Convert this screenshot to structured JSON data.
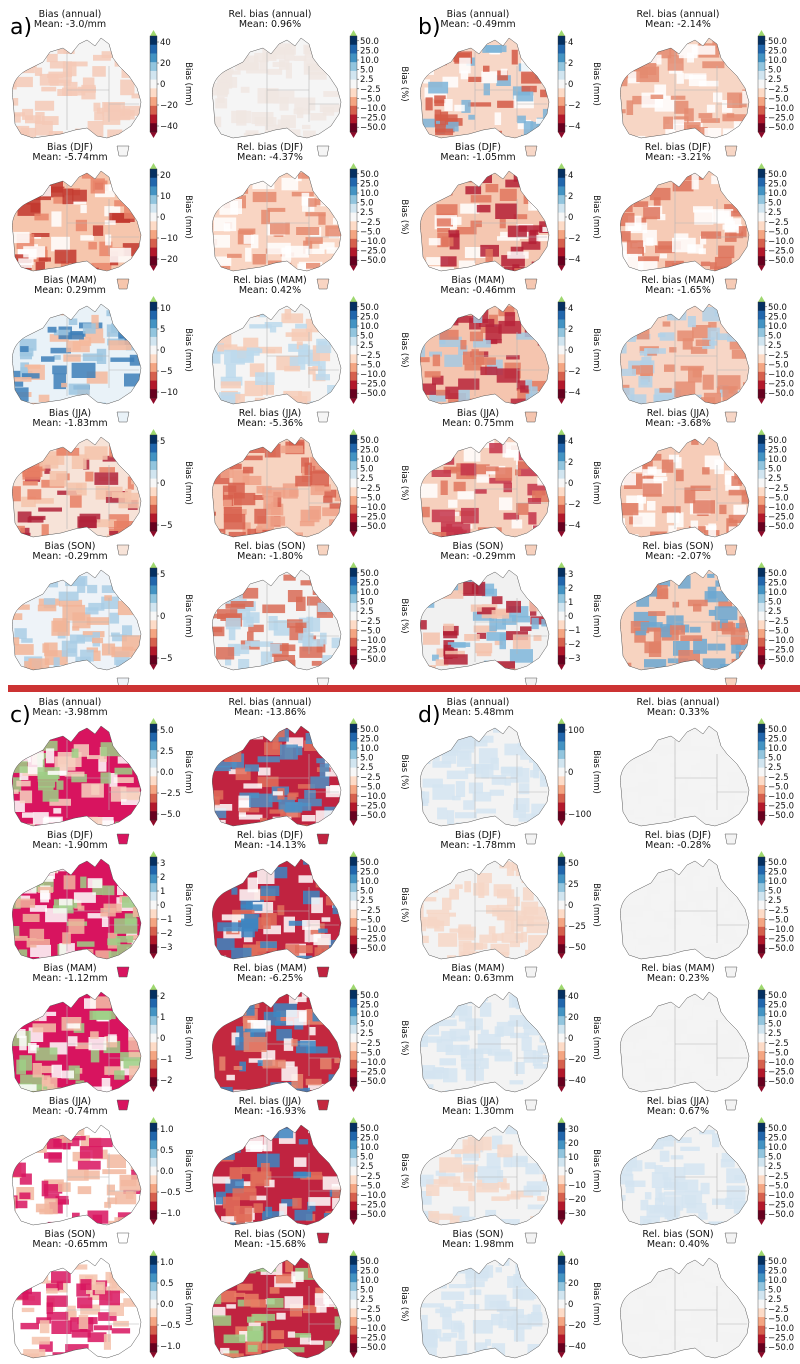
{
  "panels": [
    {
      "letter": "a)",
      "subplots": [
        {
          "title": "Bias (annual)",
          "mean": "Mean: -3.0/mm",
          "kind": "abs",
          "ticks": [
            "40",
            "20",
            "0",
            "−20",
            "−40"
          ],
          "cbar_label": "Bias (mm)",
          "dom": "white",
          "accents": [
            "#f4c9b6"
          ]
        },
        {
          "title": "Rel. bias (annual)",
          "mean": "Mean: 0.96%",
          "kind": "rel",
          "cbar_label": "Bias (%)",
          "dom": "white",
          "accents": [
            "#f0e6e2"
          ]
        },
        {
          "title": "Bias (DJF)",
          "mean": "Mean: -5.74mm",
          "kind": "abs",
          "ticks": [
            "20",
            "10",
            "0",
            "−10",
            "−20"
          ],
          "cbar_label": "Bias (mm)",
          "dom": "#f6c6ad",
          "accents": [
            "#c2372e",
            "#e9856a",
            "#ffffff"
          ]
        },
        {
          "title": "Rel. bias (DJF)",
          "mean": "Mean: -4.37%",
          "kind": "rel",
          "cbar_label": "Bias (%)",
          "dom": "#f9d5c3",
          "accents": [
            "#e58a6e",
            "#ffffff"
          ]
        },
        {
          "title": "Bias (MAM)",
          "mean": "Mean: 0.29mm",
          "kind": "abs",
          "ticks": [
            "10",
            "5",
            "0",
            "−5",
            "−10"
          ],
          "cbar_label": "Bias (mm)",
          "dom": "#e9f2f8",
          "accents": [
            "#9cc6e1",
            "#f4b89c",
            "#3d7fb8"
          ]
        },
        {
          "title": "Rel. bias (MAM)",
          "mean": "Mean: 0.42%",
          "kind": "rel",
          "cbar_label": "Bias (%)",
          "dom": "white",
          "accents": [
            "#bcd9ec",
            "#f6cbb6"
          ]
        },
        {
          "title": "Bias (JJA)",
          "mean": "Mean: -1.83mm",
          "kind": "abs",
          "ticks": [
            "5",
            "0",
            "−5"
          ],
          "cbar_label": "Bias (mm)",
          "dom": "#f7e3d8",
          "accents": [
            "#b0223a",
            "#e77f64",
            "#f5c3aa"
          ]
        },
        {
          "title": "Rel. bias (JJA)",
          "mean": "Mean: -5.36%",
          "kind": "rel",
          "cbar_label": "Bias (%)",
          "dom": "#f7d3c0",
          "accents": [
            "#d75f4c",
            "#eea187"
          ]
        },
        {
          "title": "Bias (SON)",
          "mean": "Mean: -0.29mm",
          "kind": "abs",
          "ticks": [
            "5",
            "0",
            "−5"
          ],
          "cbar_label": "Bias (mm)",
          "dom": "#eef3f8",
          "accents": [
            "#a9cce5",
            "#f2b497"
          ]
        },
        {
          "title": "Rel. bias (SON)",
          "mean": "Mean: -1.80%",
          "kind": "rel",
          "cbar_label": "Bias (%)",
          "dom": "#f4f4f4",
          "accents": [
            "#d86a55",
            "#b7d6ea"
          ]
        }
      ]
    },
    {
      "letter": "b)",
      "subplots": [
        {
          "title": "Bias (annual)",
          "mean": "Mean: -0.49mm",
          "kind": "abs",
          "ticks": [
            "4",
            "2",
            "0",
            "−2",
            "−4"
          ],
          "cbar_label": "Bias (mm)",
          "dom": "#f7d7c7",
          "accents": [
            "#d35a47",
            "#7db4d8",
            "#ffffff"
          ]
        },
        {
          "title": "Rel. bias (annual)",
          "mean": "Mean: -2.14%",
          "kind": "rel",
          "cbar_label": "Bias (%)",
          "dom": "#f7d6c5",
          "accents": [
            "#e48b70",
            "#ffffff"
          ]
        },
        {
          "title": "Bias (DJF)",
          "mean": "Mean: -1.05mm",
          "kind": "abs",
          "ticks": [
            "4",
            "2",
            "0",
            "−2",
            "−4"
          ],
          "cbar_label": "Bias (mm)",
          "dom": "#f5c7b1",
          "accents": [
            "#b41f35",
            "#e0765e",
            "#ffffff"
          ]
        },
        {
          "title": "Rel. bias (DJF)",
          "mean": "Mean: -3.21%",
          "kind": "rel",
          "cbar_label": "Bias (%)",
          "dom": "#f6cbb6",
          "accents": [
            "#dd735c",
            "#ffffff"
          ]
        },
        {
          "title": "Bias (MAM)",
          "mean": "Mean: -0.46mm",
          "kind": "abs",
          "ticks": [
            "4",
            "2",
            "0",
            "−2",
            "−4"
          ],
          "cbar_label": "Bias (mm)",
          "dom": "#f5c5af",
          "accents": [
            "#b7233a",
            "#e27a62",
            "#a4c9e3"
          ]
        },
        {
          "title": "Rel. bias (MAM)",
          "mean": "Mean: -1.65%",
          "kind": "rel",
          "cbar_label": "Bias (%)",
          "dom": "#f7d6c6",
          "accents": [
            "#e58c71",
            "#b1d1e8"
          ]
        },
        {
          "title": "Bias (JJA)",
          "mean": "Mean: 0.75mm",
          "kind": "abs",
          "ticks": [
            "4",
            "2",
            "0",
            "−2",
            "−4"
          ],
          "cbar_label": "Bias (mm)",
          "dom": "#f6d0bd",
          "accents": [
            "#c4344a",
            "#e1775f",
            "#ffffff"
          ]
        },
        {
          "title": "Rel. bias (JJA)",
          "mean": "Mean: -3.68%",
          "kind": "rel",
          "cbar_label": "Bias (%)",
          "dom": "#f6ccb8",
          "accents": [
            "#df7a61",
            "#ffffff"
          ]
        },
        {
          "title": "Bias (SON)",
          "mean": "Mean: -0.29mm",
          "kind": "abs",
          "ticks": [
            "3",
            "2",
            "1",
            "0",
            "−1",
            "−2",
            "−3"
          ],
          "cbar_label": "Bias (mm)",
          "dom": "#f1f1f1",
          "accents": [
            "#f4c2ab",
            "#b21f34",
            "#7fb6da"
          ]
        },
        {
          "title": "Rel. bias (SON)",
          "mean": "Mean: -2.07%",
          "kind": "rel",
          "cbar_label": "Bias (%)",
          "dom": "#f7d3c0",
          "accents": [
            "#e17f66",
            "#6ba7d1"
          ]
        }
      ]
    },
    {
      "letter": "c)",
      "subplots": [
        {
          "title": "Bias (annual)",
          "mean": "Mean: -3.98mm",
          "kind": "abs",
          "ticks": [
            "5.0",
            "2.5",
            "0.0",
            "−2.5",
            "−5.0"
          ],
          "cbar_label": "Bias (mm)",
          "dom": "#d8145f",
          "accents": [
            "#f7d1c0",
            "#ffffff",
            "#9ecf86"
          ]
        },
        {
          "title": "Rel. bias (annual)",
          "mean": "Mean: -13.86%",
          "kind": "rel",
          "cbar_label": "Bias (%)",
          "dom": "#c02340",
          "accents": [
            "#e06e5a",
            "#ffffff",
            "#4c8fc4"
          ]
        },
        {
          "title": "Bias (DJF)",
          "mean": "Mean: -1.90mm",
          "kind": "abs",
          "ticks": [
            "3",
            "2",
            "1",
            "0",
            "−1",
            "−2",
            "−3"
          ],
          "cbar_label": "Bias (mm)",
          "dom": "#d8145f",
          "accents": [
            "#ffffff",
            "#f1b49d",
            "#9ecf86"
          ]
        },
        {
          "title": "Rel. bias (DJF)",
          "mean": "Mean: -14.13%",
          "kind": "rel",
          "cbar_label": "Bias (%)",
          "dom": "#c02340",
          "accents": [
            "#e06e5a",
            "#ffffff",
            "#3c86c2"
          ]
        },
        {
          "title": "Bias (MAM)",
          "mean": "Mean: -1.12mm",
          "kind": "abs",
          "ticks": [
            "2",
            "1",
            "0",
            "−1",
            "−2"
          ],
          "cbar_label": "Bias (mm)",
          "dom": "#d8145f",
          "accents": [
            "#ffffff",
            "#f3bfa8",
            "#9ecf86"
          ]
        },
        {
          "title": "Rel. bias (MAM)",
          "mean": "Mean: -6.25%",
          "kind": "rel",
          "cbar_label": "Bias (%)",
          "dom": "#c3283f",
          "accents": [
            "#e6866d",
            "#ffffff",
            "#3c86c2"
          ]
        },
        {
          "title": "Bias (JJA)",
          "mean": "Mean: -0.74mm",
          "kind": "abs",
          "ticks": [
            "1.0",
            "0.5",
            "0.0",
            "−0.5",
            "−1.0"
          ],
          "cbar_label": "Bias (mm)",
          "dom": "#ffffff",
          "accents": [
            "#d8145f",
            "#f2b79f"
          ]
        },
        {
          "title": "Rel. bias (JJA)",
          "mean": "Mean: -16.93%",
          "kind": "rel",
          "cbar_label": "Bias (%)",
          "dom": "#c02340",
          "accents": [
            "#e06e5a",
            "#ffffff",
            "#3c86c2"
          ]
        },
        {
          "title": "Bias (SON)",
          "mean": "Mean: -0.65mm",
          "kind": "abs",
          "ticks": [
            "1.0",
            "0.5",
            "0.0",
            "−0.5",
            "−1.0"
          ],
          "cbar_label": "Bias (mm)",
          "dom": "#ffffff",
          "accents": [
            "#d8145f",
            "#f4c2ab"
          ]
        },
        {
          "title": "Rel. bias (SON)",
          "mean": "Mean: -15.68%",
          "kind": "rel",
          "cbar_label": "Bias (%)",
          "dom": "#c02340",
          "accents": [
            "#e77c63",
            "#ffffff",
            "#9ecf86"
          ]
        }
      ]
    },
    {
      "letter": "d)",
      "subplots": [
        {
          "title": "Bias (annual)",
          "mean": "Mean: 5.48mm",
          "kind": "abs",
          "ticks": [
            "100",
            "0",
            "−100"
          ],
          "cbar_label": "Bias (mm)",
          "dom": "#f3f3f3",
          "accents": [
            "#d3e4f1"
          ]
        },
        {
          "title": "Rel. bias (annual)",
          "mean": "Mean: 0.33%",
          "kind": "rel",
          "cbar_label": "Bias (%)",
          "dom": "#f3f3f3",
          "accents": [
            "#f3f3f3"
          ]
        },
        {
          "title": "Bias (DJF)",
          "mean": "Mean: -1.78mm",
          "kind": "abs",
          "ticks": [
            "50",
            "25",
            "0",
            "−25",
            "−50"
          ],
          "cbar_label": "Bias (mm)",
          "dom": "#f3f3f3",
          "accents": [
            "#f6d6c6"
          ]
        },
        {
          "title": "Rel. bias (DJF)",
          "mean": "Mean: -0.28%",
          "kind": "rel",
          "cbar_label": "Bias (%)",
          "dom": "#f3f3f3",
          "accents": [
            "#f3f3f3"
          ]
        },
        {
          "title": "Bias (MAM)",
          "mean": "Mean: 0.63mm",
          "kind": "abs",
          "ticks": [
            "40",
            "20",
            "0",
            "−20",
            "−40"
          ],
          "cbar_label": "Bias (mm)",
          "dom": "#f3f3f3",
          "accents": [
            "#d3e4f1"
          ]
        },
        {
          "title": "Rel. bias (MAM)",
          "mean": "Mean: 0.23%",
          "kind": "rel",
          "cbar_label": "Bias (%)",
          "dom": "#f3f3f3",
          "accents": [
            "#f3f3f3"
          ]
        },
        {
          "title": "Bias (JJA)",
          "mean": "Mean: 1.30mm",
          "kind": "abs",
          "ticks": [
            "30",
            "20",
            "10",
            "0",
            "−10",
            "−20",
            "−30"
          ],
          "cbar_label": "Bias (mm)",
          "dom": "#f3f3f3",
          "accents": [
            "#d3e4f1",
            "#f6d6c6"
          ]
        },
        {
          "title": "Rel. bias (JJA)",
          "mean": "Mean: 0.67%",
          "kind": "rel",
          "cbar_label": "Bias (%)",
          "dom": "#f3f3f3",
          "accents": [
            "#d3e4f1"
          ]
        },
        {
          "title": "Bias (SON)",
          "mean": "Mean: 1.98mm",
          "kind": "abs",
          "ticks": [
            "40",
            "20",
            "0",
            "−20",
            "−40"
          ],
          "cbar_label": "Bias (mm)",
          "dom": "#f3f3f3",
          "accents": [
            "#d3e4f1"
          ]
        },
        {
          "title": "Rel. bias (SON)",
          "mean": "Mean: 0.40%",
          "kind": "rel",
          "cbar_label": "Bias (%)",
          "dom": "#f3f3f3",
          "accents": [
            "#f3f3f3"
          ]
        }
      ]
    }
  ],
  "rel_ticks": [
    "50.0",
    "25.0",
    "10.0",
    "5.0",
    "2.5",
    "−2.5",
    "−5.0",
    "−10.0",
    "−25.0",
    "−50.0"
  ],
  "cmap": [
    "#67001f",
    "#b2182b",
    "#d6604d",
    "#f4a582",
    "#fddbc7",
    "#f7f7f7",
    "#d1e5f0",
    "#92c5de",
    "#4393c3",
    "#2166ac",
    "#053061"
  ],
  "extend_colors": {
    "low": "#8e0b2a",
    "high": "#9fd870"
  },
  "colors": {
    "divider": "#cc3333",
    "coast": "#555555"
  }
}
